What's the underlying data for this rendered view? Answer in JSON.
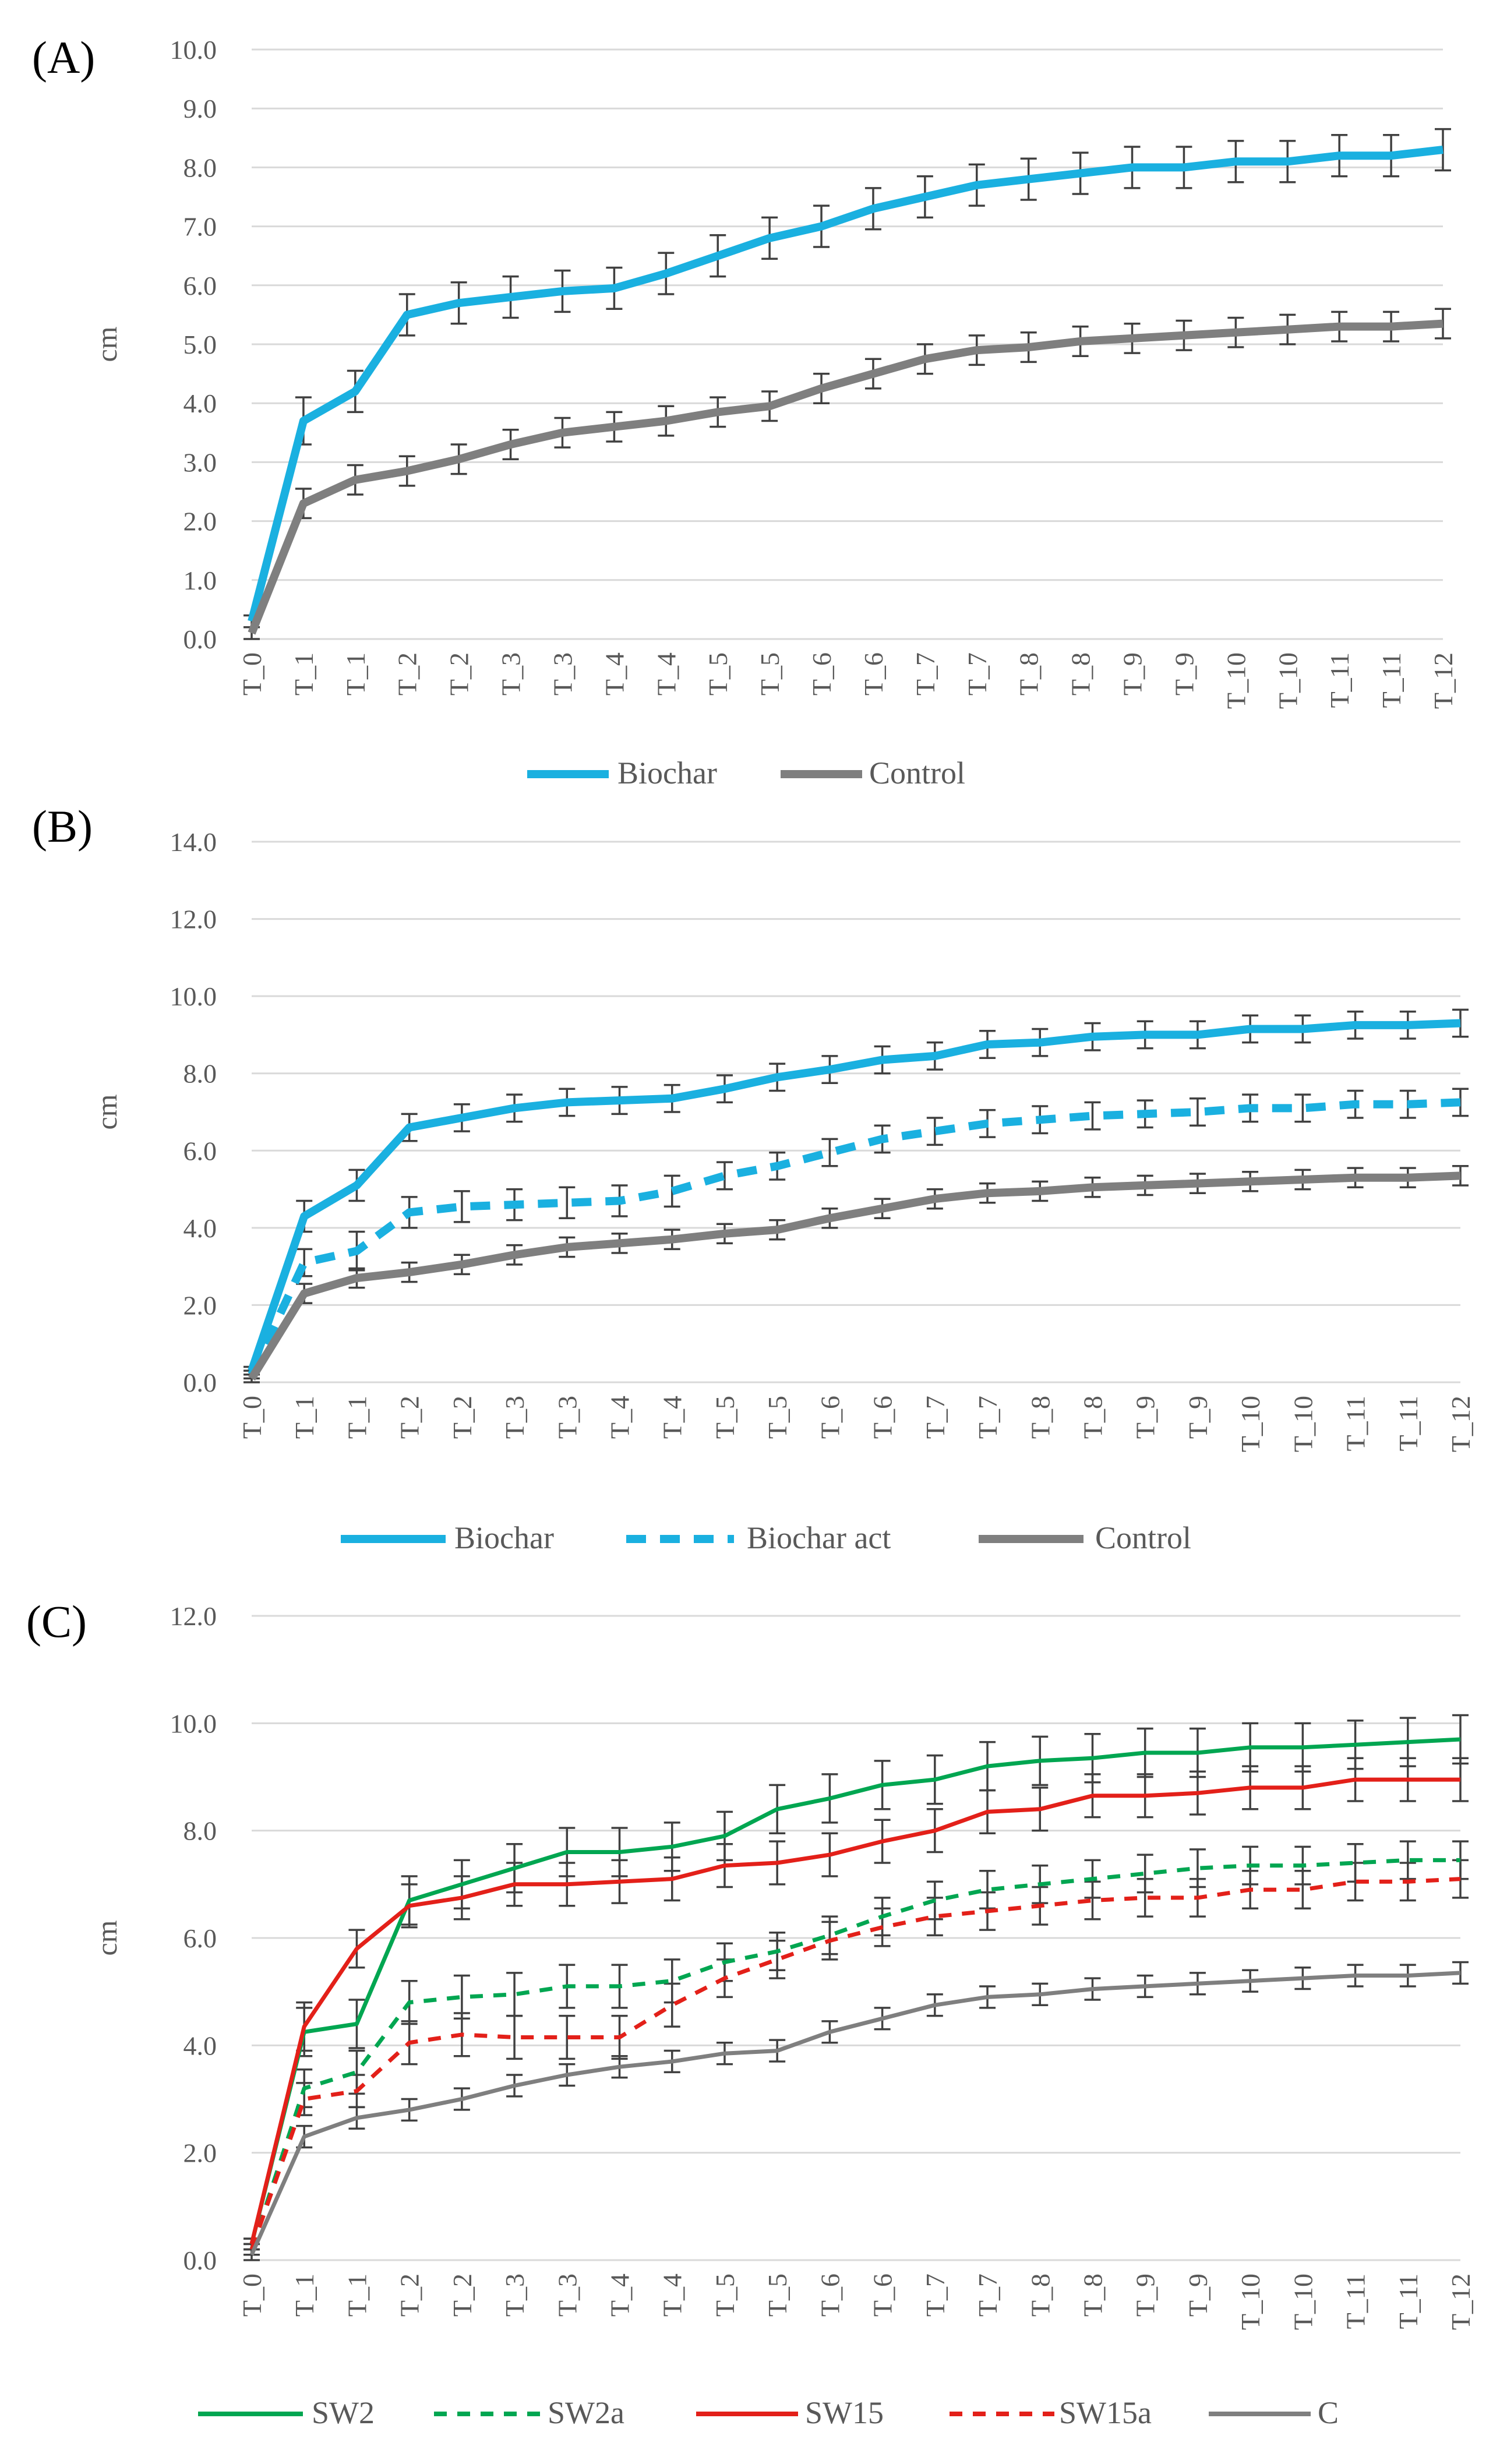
{
  "chart_data": [
    {
      "panel_label": "(A)",
      "type": "line",
      "ylabel": "cm",
      "ylim": [
        0,
        10
      ],
      "ystep": 1,
      "ytick_labels": [
        "0.0",
        "1.0",
        "2.0",
        "3.0",
        "4.0",
        "5.0",
        "6.0",
        "7.0",
        "8.0",
        "9.0",
        "10.0"
      ],
      "categories": [
        "T_0",
        "T_1",
        "T_1",
        "T_2",
        "T_2",
        "T_3",
        "T_3",
        "T_4",
        "T_4",
        "T_5",
        "T_5",
        "T_6",
        "T_6",
        "T_7",
        "T_7",
        "T_8",
        "T_8",
        "T_9",
        "T_9",
        "T_10",
        "T_10",
        "T_11",
        "T_11",
        "T_12"
      ],
      "legend_position": "bottom",
      "series": [
        {
          "name": "Biochar",
          "color": "#1ab0e0",
          "style": "solid",
          "weight": "thick",
          "values": [
            0.3,
            3.7,
            4.2,
            5.5,
            5.7,
            5.8,
            5.9,
            5.95,
            6.2,
            6.5,
            6.8,
            7.0,
            7.3,
            7.5,
            7.7,
            7.8,
            7.9,
            8.0,
            8.0,
            8.1,
            8.1,
            8.2,
            8.2,
            8.3
          ],
          "errors": [
            0.1,
            0.4,
            0.35,
            0.35,
            0.35,
            0.35,
            0.35,
            0.35,
            0.35,
            0.35,
            0.35,
            0.35,
            0.35,
            0.35,
            0.35,
            0.35,
            0.35,
            0.35,
            0.35,
            0.35,
            0.35,
            0.35,
            0.35,
            0.35
          ]
        },
        {
          "name": "Control",
          "color": "#7f7f7f",
          "style": "solid",
          "weight": "thick",
          "values": [
            0.1,
            2.3,
            2.7,
            2.85,
            3.05,
            3.3,
            3.5,
            3.6,
            3.7,
            3.85,
            3.95,
            4.25,
            4.5,
            4.75,
            4.9,
            4.95,
            5.05,
            5.1,
            5.15,
            5.2,
            5.25,
            5.3,
            5.3,
            5.35
          ],
          "errors": [
            0.1,
            0.25,
            0.25,
            0.25,
            0.25,
            0.25,
            0.25,
            0.25,
            0.25,
            0.25,
            0.25,
            0.25,
            0.25,
            0.25,
            0.25,
            0.25,
            0.25,
            0.25,
            0.25,
            0.25,
            0.25,
            0.25,
            0.25,
            0.25
          ]
        }
      ]
    },
    {
      "panel_label": "(B)",
      "type": "line",
      "ylabel": "cm",
      "ylim": [
        0,
        14
      ],
      "ystep": 2,
      "ytick_labels": [
        "0.0",
        "2.0",
        "4.0",
        "6.0",
        "8.0",
        "10.0",
        "12.0",
        "14.0"
      ],
      "categories": [
        "T_0",
        "T_1",
        "T_1",
        "T_2",
        "T_2",
        "T_3",
        "T_3",
        "T_4",
        "T_4",
        "T_5",
        "T_5",
        "T_6",
        "T_6",
        "T_7",
        "T_7",
        "T_8",
        "T_8",
        "T_9",
        "T_9",
        "T_10",
        "T_10",
        "T_11",
        "T_11",
        "T_12"
      ],
      "legend_position": "bottom",
      "series": [
        {
          "name": "Biochar",
          "color": "#1ab0e0",
          "style": "solid",
          "weight": "thick",
          "values": [
            0.3,
            4.3,
            5.1,
            6.6,
            6.85,
            7.1,
            7.25,
            7.3,
            7.35,
            7.6,
            7.9,
            8.1,
            8.35,
            8.45,
            8.75,
            8.8,
            8.95,
            9.0,
            9.0,
            9.15,
            9.15,
            9.25,
            9.25,
            9.3
          ],
          "errors": [
            0.1,
            0.4,
            0.4,
            0.35,
            0.35,
            0.35,
            0.35,
            0.35,
            0.35,
            0.35,
            0.35,
            0.35,
            0.35,
            0.35,
            0.35,
            0.35,
            0.35,
            0.35,
            0.35,
            0.35,
            0.35,
            0.35,
            0.35,
            0.35
          ]
        },
        {
          "name": "Biochar act",
          "color": "#1ab0e0",
          "style": "dashed",
          "weight": "thick",
          "values": [
            0.2,
            3.1,
            3.4,
            4.4,
            4.55,
            4.6,
            4.65,
            4.7,
            4.95,
            5.35,
            5.6,
            5.95,
            6.3,
            6.5,
            6.7,
            6.8,
            6.9,
            6.95,
            7.0,
            7.1,
            7.1,
            7.2,
            7.2,
            7.25
          ],
          "errors": [
            0.1,
            0.35,
            0.5,
            0.4,
            0.4,
            0.4,
            0.4,
            0.4,
            0.4,
            0.35,
            0.35,
            0.35,
            0.35,
            0.35,
            0.35,
            0.35,
            0.35,
            0.35,
            0.35,
            0.35,
            0.35,
            0.35,
            0.35,
            0.35
          ]
        },
        {
          "name": "Control",
          "color": "#7f7f7f",
          "style": "solid",
          "weight": "thick",
          "values": [
            0.1,
            2.3,
            2.7,
            2.85,
            3.05,
            3.3,
            3.5,
            3.6,
            3.7,
            3.85,
            3.95,
            4.25,
            4.5,
            4.75,
            4.9,
            4.95,
            5.05,
            5.1,
            5.15,
            5.2,
            5.25,
            5.3,
            5.3,
            5.35
          ],
          "errors": [
            0.1,
            0.25,
            0.25,
            0.25,
            0.25,
            0.25,
            0.25,
            0.25,
            0.25,
            0.25,
            0.25,
            0.25,
            0.25,
            0.25,
            0.25,
            0.25,
            0.25,
            0.25,
            0.25,
            0.25,
            0.25,
            0.25,
            0.25,
            0.25
          ]
        }
      ]
    },
    {
      "panel_label": "(C)",
      "type": "line",
      "ylabel": "cm",
      "ylim": [
        0,
        12
      ],
      "ystep": 2,
      "ytick_labels": [
        "0.0",
        "2.0",
        "4.0",
        "6.0",
        "8.0",
        "10.0",
        "12.0"
      ],
      "categories": [
        "T_0",
        "T_1",
        "T_1",
        "T_2",
        "T_2",
        "T_3",
        "T_3",
        "T_4",
        "T_4",
        "T_5",
        "T_5",
        "T_6",
        "T_6",
        "T_7",
        "T_7",
        "T_8",
        "T_8",
        "T_9",
        "T_9",
        "T_10",
        "T_10",
        "T_11",
        "T_11",
        "T_12"
      ],
      "legend_position": "bottom",
      "series": [
        {
          "name": "SW2",
          "color": "#00a651",
          "style": "solid",
          "weight": "thin",
          "values": [
            0.3,
            4.25,
            4.4,
            6.7,
            7.0,
            7.3,
            7.6,
            7.6,
            7.7,
            7.9,
            8.4,
            8.6,
            8.85,
            8.95,
            9.2,
            9.3,
            9.35,
            9.45,
            9.45,
            9.55,
            9.55,
            9.6,
            9.65,
            9.7
          ],
          "errors": [
            0.1,
            0.45,
            0.45,
            0.45,
            0.45,
            0.45,
            0.45,
            0.45,
            0.45,
            0.45,
            0.45,
            0.45,
            0.45,
            0.45,
            0.45,
            0.45,
            0.45,
            0.45,
            0.45,
            0.45,
            0.45,
            0.45,
            0.45,
            0.45
          ]
        },
        {
          "name": "SW2a",
          "color": "#00a651",
          "style": "dashed",
          "weight": "thin",
          "values": [
            0.2,
            3.2,
            3.5,
            4.8,
            4.9,
            4.95,
            5.1,
            5.1,
            5.2,
            5.55,
            5.75,
            6.05,
            6.4,
            6.7,
            6.9,
            7.0,
            7.1,
            7.2,
            7.3,
            7.35,
            7.35,
            7.4,
            7.45,
            7.45
          ],
          "errors": [
            0.1,
            0.35,
            0.4,
            0.4,
            0.4,
            0.4,
            0.4,
            0.4,
            0.4,
            0.35,
            0.35,
            0.35,
            0.35,
            0.35,
            0.35,
            0.35,
            0.35,
            0.35,
            0.35,
            0.35,
            0.35,
            0.35,
            0.35,
            0.35
          ]
        },
        {
          "name": "SW15",
          "color": "#e32019",
          "style": "solid",
          "weight": "thin",
          "values": [
            0.3,
            4.35,
            5.8,
            6.6,
            6.75,
            7.0,
            7.0,
            7.05,
            7.1,
            7.35,
            7.4,
            7.55,
            7.8,
            8.0,
            8.35,
            8.4,
            8.65,
            8.65,
            8.7,
            8.8,
            8.8,
            8.95,
            8.95,
            8.95
          ],
          "errors": [
            0.1,
            0.45,
            0.35,
            0.4,
            0.4,
            0.4,
            0.4,
            0.4,
            0.4,
            0.4,
            0.4,
            0.4,
            0.4,
            0.4,
            0.4,
            0.4,
            0.4,
            0.4,
            0.4,
            0.4,
            0.4,
            0.4,
            0.4,
            0.4
          ]
        },
        {
          "name": "SW15a",
          "color": "#e32019",
          "style": "dashed",
          "weight": "thin",
          "values": [
            0.2,
            3.0,
            3.15,
            4.05,
            4.2,
            4.15,
            4.15,
            4.15,
            4.75,
            5.25,
            5.6,
            5.95,
            6.2,
            6.4,
            6.5,
            6.6,
            6.7,
            6.75,
            6.75,
            6.9,
            6.9,
            7.05,
            7.05,
            7.1
          ],
          "errors": [
            0.1,
            0.3,
            0.3,
            0.4,
            0.4,
            0.4,
            0.4,
            0.4,
            0.4,
            0.35,
            0.35,
            0.35,
            0.35,
            0.35,
            0.35,
            0.35,
            0.35,
            0.35,
            0.35,
            0.35,
            0.35,
            0.35,
            0.35,
            0.35
          ]
        },
        {
          "name": "C",
          "color": "#7f7f7f",
          "style": "solid",
          "weight": "thin",
          "values": [
            0.1,
            2.3,
            2.65,
            2.8,
            3.0,
            3.25,
            3.45,
            3.6,
            3.7,
            3.85,
            3.9,
            4.25,
            4.5,
            4.75,
            4.9,
            4.95,
            5.05,
            5.1,
            5.15,
            5.2,
            5.25,
            5.3,
            5.3,
            5.35
          ],
          "errors": [
            0.1,
            0.2,
            0.2,
            0.2,
            0.2,
            0.2,
            0.2,
            0.2,
            0.2,
            0.2,
            0.2,
            0.2,
            0.2,
            0.2,
            0.2,
            0.2,
            0.2,
            0.2,
            0.2,
            0.2,
            0.2,
            0.2,
            0.2,
            0.2
          ]
        }
      ]
    }
  ]
}
